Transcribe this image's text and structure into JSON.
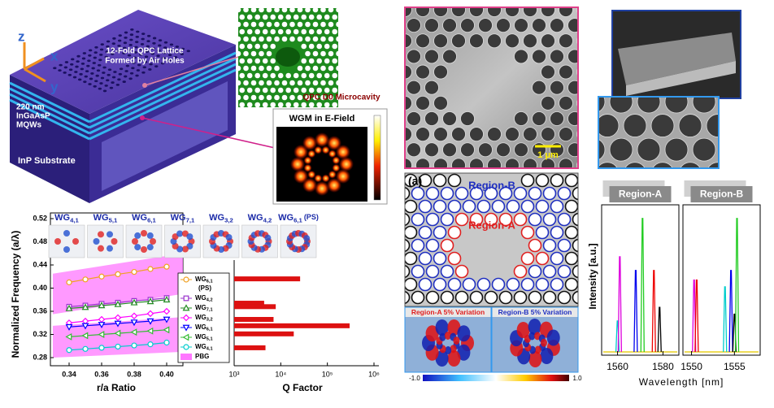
{
  "schematic": {
    "axis_labels": [
      "z",
      "x",
      "y"
    ],
    "lattice_label": [
      "12-Fold QPC Lattice",
      "Formed by Air Holes"
    ],
    "mqw_label": [
      "220 nm",
      "InGaAsP",
      "MQWs"
    ],
    "substrate_label": "InP Substrate"
  },
  "microcavity_label": "QPC D0 Microcavity",
  "wgm_title": "WGM in E-Field",
  "sem_scale_bar": "1 μm",
  "regions": {
    "panel_label": "(a)",
    "region_b": "Region-B",
    "region_a": "Region-A",
    "variation_a": "Region-A 5% Variation",
    "variation_b": "Region-B 5% Variation",
    "colorbar_ticks": [
      {
        "value": -1,
        "label": "-1.0"
      },
      {
        "value": 1,
        "label": "1.0"
      }
    ]
  },
  "chart_data": [
    {
      "type": "line",
      "ylabel": "Normalized Frequency (a/λ)",
      "xlabel": "r/a Ratio",
      "mode_labels": [
        {
          "name": "WG",
          "index": "4,1"
        },
        {
          "name": "WG",
          "index": "5,1"
        },
        {
          "name": "WG",
          "index": "6,1"
        },
        {
          "name": "WG",
          "index": "7,1"
        },
        {
          "name": "WG",
          "index": "3,2"
        },
        {
          "name": "WG",
          "index": "4,2"
        },
        {
          "name": "WG",
          "index": "6,1",
          "suffix": "(PS)"
        }
      ],
      "x": [
        0.34,
        0.35,
        0.36,
        0.37,
        0.38,
        0.39,
        0.4
      ],
      "xlim": [
        0.33,
        0.41
      ],
      "xticks": [
        0.34,
        0.36,
        0.38,
        {
          "value": 0.4,
          "label": "0.40"
        }
      ],
      "ylim": [
        0.266,
        0.52
      ],
      "yticks": [
        0.28,
        0.32,
        0.36,
        {
          "value": 0.4,
          "label": "0.40"
        },
        0.44,
        0.48,
        0.52
      ],
      "series": [
        {
          "name": "WG",
          "index": "6,1",
          "suffix": "(PS)",
          "color": "#f0a020",
          "marker": "circle",
          "values": [
            0.41,
            0.415,
            0.42,
            0.424,
            0.428,
            0.433,
            0.437
          ]
        },
        {
          "name": "WG",
          "index": "4,2",
          "color": "#9933cc",
          "marker": "square",
          "values": [
            0.368,
            0.37,
            0.373,
            0.375,
            0.378,
            0.38,
            0.383
          ]
        },
        {
          "name": "WG",
          "index": "7,1",
          "color": "#228b22",
          "marker": "triangle",
          "values": [
            0.365,
            0.367,
            0.37,
            0.372,
            0.375,
            0.377,
            0.38
          ]
        },
        {
          "name": "WG",
          "index": "3,2",
          "color": "#ff00ff",
          "marker": "diamond",
          "values": [
            0.34,
            0.343,
            0.346,
            0.349,
            0.352,
            0.356,
            0.36
          ]
        },
        {
          "name": "WG",
          "index": "6,1",
          "color": "#0000ff",
          "marker": "triangle-down",
          "values": [
            0.333,
            0.335,
            0.337,
            0.339,
            0.341,
            0.343,
            0.346
          ]
        },
        {
          "name": "WG",
          "index": "5,1",
          "color": "#33bb33",
          "marker": "triangle-left",
          "values": [
            0.316,
            0.318,
            0.32,
            0.322,
            0.324,
            0.326,
            0.328
          ]
        },
        {
          "name": "WG",
          "index": "4,1",
          "color": "#00cccc",
          "marker": "circle",
          "values": [
            0.293,
            0.295,
            0.297,
            0.299,
            0.301,
            0.303,
            0.306
          ]
        }
      ],
      "pbg": {
        "name": "PBG",
        "color": "#ff77ff",
        "x": [
          0.33,
          0.41
        ],
        "bands": [
          {
            "lower": [
              0.355,
              0.39
            ],
            "upper": [
              0.425,
              0.46
            ]
          },
          {
            "lower": [
              0.28,
              0.29
            ],
            "upper": [
              0.335,
              0.35
            ]
          }
        ]
      }
    },
    {
      "type": "hbar",
      "xlabel": "Q Factor",
      "xscale": "log",
      "xlim": [
        1000,
        1000000
      ],
      "xticks": [
        {
          "value": 1000,
          "label": "10³"
        },
        {
          "value": 10000,
          "label": "10⁴"
        },
        {
          "value": 100000,
          "label": "10⁵"
        },
        {
          "value": 1000000,
          "label": "10⁶"
        }
      ],
      "ylim": [
        0.266,
        0.52
      ],
      "color": "#dd1111",
      "frequencies": [
        0.416,
        0.374,
        0.368,
        0.346,
        0.335,
        0.321,
        0.297
      ],
      "values": [
        26000,
        4400,
        7800,
        7000,
        300000,
        19000,
        4700
      ]
    },
    {
      "type": "spectrum",
      "title": "Region-A",
      "ylabel": "Intensity [a.u.]",
      "xlabel": "Wavelength [nm]",
      "xlim": [
        1553,
        1587
      ],
      "xticks": [
        1560,
        1580
      ],
      "ylim": [
        0,
        1.1
      ],
      "x": [
        1560,
        1561,
        1568,
        1571,
        1576,
        1578.5
      ],
      "values": [
        0.25,
        0.72,
        0.62,
        1.0,
        0.62,
        0.35
      ],
      "colors": [
        "#00cccc",
        "#dd00dd",
        "#0000ee",
        "#22cc22",
        "#ee0000",
        "#000000"
      ]
    },
    {
      "type": "spectrum",
      "title": "Region-B",
      "xlim": [
        1549,
        1558
      ],
      "xticks": [
        1550,
        1555
      ],
      "ylim": [
        0,
        1.1
      ],
      "x": [
        1550.3,
        1550.6,
        1553.9,
        1554.6,
        1555.0,
        1555.3
      ],
      "values": [
        0.55,
        0.55,
        0.5,
        0.62,
        0.3,
        1.0
      ],
      "colors": [
        "#dd00dd",
        "#ee0000",
        "#00cccc",
        "#0000ee",
        "#000000",
        "#22cc22"
      ]
    }
  ]
}
